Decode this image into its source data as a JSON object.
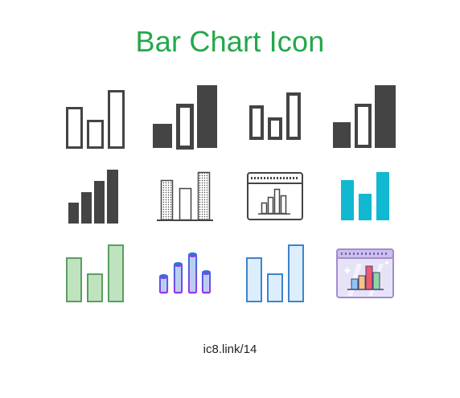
{
  "page": {
    "title": "Bar Chart Icon",
    "footer_link": "ic8.link/14"
  },
  "colors": {
    "title_green": "#22a84a",
    "dark_gray": "#444444",
    "cyan": "#11b8d1",
    "green_fill": "#bfe3bf",
    "green_stroke": "#5b9e62",
    "purple": "#9a34f0",
    "blue_bar": "#2e74d8",
    "light_blue_fill": "#dcedfb",
    "light_blue_stroke": "#3e84c9",
    "window_purple": "#a48bd1",
    "window_fill": "#e6e3f7"
  },
  "icons": [
    {
      "name": "bar-chart-outline-icon"
    },
    {
      "name": "bar-chart-mixed-fill-icon"
    },
    {
      "name": "bar-chart-bold-outline-icon"
    },
    {
      "name": "bar-chart-mixed-fill-alt-icon"
    },
    {
      "name": "bar-chart-solid-icon"
    },
    {
      "name": "bar-chart-dotted-icon"
    },
    {
      "name": "bar-chart-window-icon"
    },
    {
      "name": "bar-chart-cyan-icon"
    },
    {
      "name": "bar-chart-green-icon"
    },
    {
      "name": "bar-chart-3d-gradient-icon"
    },
    {
      "name": "bar-chart-light-blue-icon"
    },
    {
      "name": "bar-chart-window-color-icon"
    }
  ]
}
